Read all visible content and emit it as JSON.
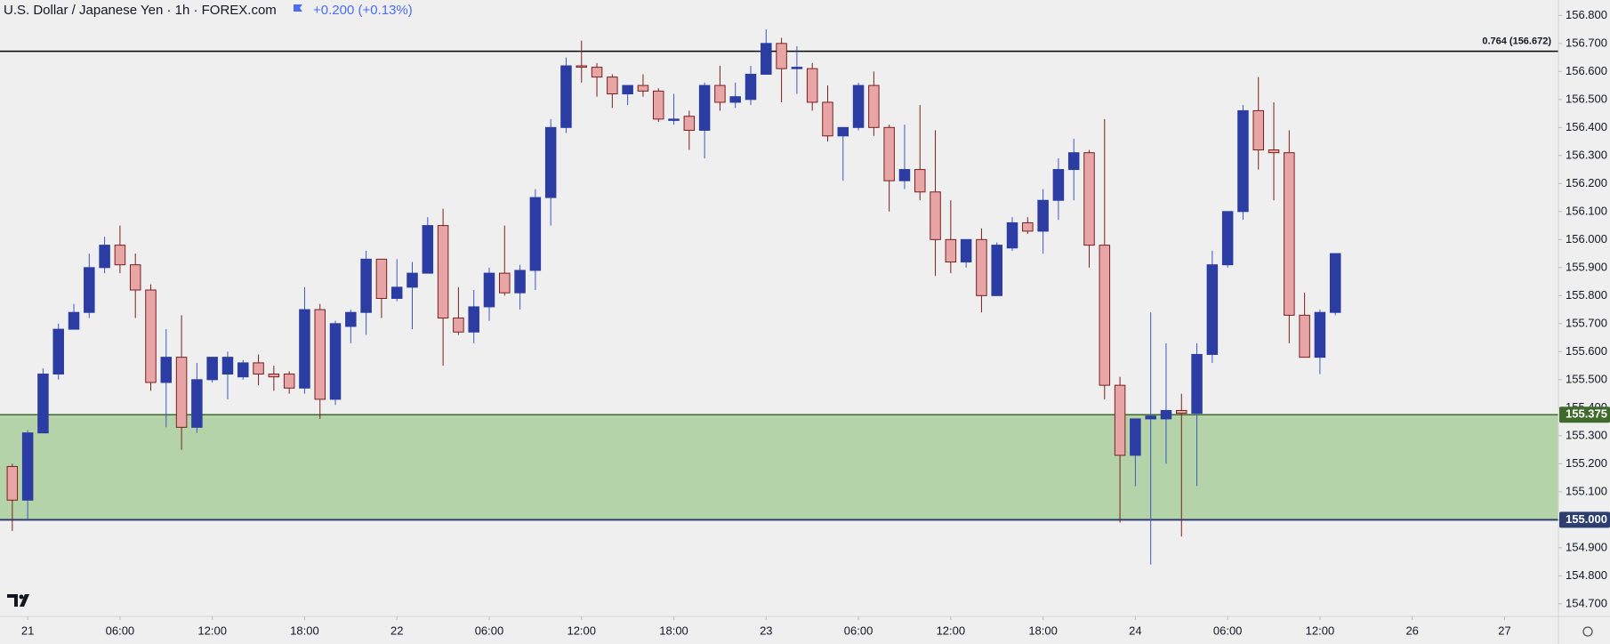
{
  "header": {
    "title": "U.S. Dollar / Japanese Yen · 1h · FOREX.com",
    "change": "+0.200 (+0.13%)"
  },
  "chart_data": {
    "type": "candlestick",
    "up_color": "#2b3ca3",
    "down_color": "#e8a5a5",
    "x": [
      -1,
      0,
      1,
      2,
      3,
      4,
      5,
      6,
      7,
      8,
      9,
      10,
      11,
      12,
      13,
      14,
      15,
      16,
      17,
      18,
      19,
      20,
      21,
      22,
      23,
      24,
      25,
      26,
      27,
      28,
      29,
      30,
      31,
      32,
      33,
      34,
      35,
      36,
      37,
      38,
      39,
      40,
      41,
      42,
      43,
      44,
      45,
      46,
      47,
      48,
      49,
      50,
      51,
      52,
      53,
      54,
      55,
      56,
      57,
      58,
      59,
      60,
      61,
      62,
      63,
      64,
      65,
      66,
      67,
      68,
      69,
      70,
      71,
      72,
      73,
      74,
      75,
      76,
      77,
      78,
      79,
      80,
      81,
      82,
      83,
      84,
      85
    ],
    "open": [
      155.19,
      155.07,
      155.31,
      155.52,
      155.68,
      155.74,
      155.9,
      155.98,
      155.91,
      155.82,
      155.49,
      155.58,
      155.33,
      155.5,
      155.52,
      155.51,
      155.56,
      155.52,
      155.52,
      155.47,
      155.75,
      155.43,
      155.69,
      155.74,
      155.93,
      155.79,
      155.83,
      155.88,
      156.05,
      155.72,
      155.67,
      155.76,
      155.88,
      155.81,
      155.89,
      156.15,
      156.4,
      156.62,
      156.615,
      156.58,
      156.52,
      156.55,
      156.53,
      156.43,
      156.44,
      156.39,
      156.55,
      156.49,
      156.5,
      156.59,
      156.7,
      156.61,
      156.61,
      156.49,
      156.37,
      156.4,
      156.55,
      156.4,
      156.21,
      156.25,
      156.17,
      156.0,
      155.92,
      156.0,
      155.8,
      155.97,
      156.06,
      156.03,
      156.14,
      156.25,
      156.31,
      155.98,
      155.48,
      155.23,
      155.36,
      155.36,
      155.39,
      155.38,
      155.59,
      155.91,
      156.1,
      156.46,
      156.32,
      156.31,
      155.73,
      155.58,
      155.74
    ],
    "high": [
      155.2,
      155.32,
      155.54,
      155.7,
      155.77,
      155.95,
      156.01,
      156.05,
      155.95,
      155.84,
      155.68,
      155.73,
      155.56,
      155.58,
      155.6,
      155.57,
      155.59,
      155.55,
      155.53,
      155.83,
      155.77,
      155.71,
      155.75,
      155.96,
      155.93,
      155.93,
      155.92,
      156.08,
      156.11,
      155.83,
      155.82,
      155.9,
      156.05,
      155.91,
      156.18,
      156.43,
      156.65,
      156.71,
      156.63,
      156.59,
      156.55,
      156.59,
      156.54,
      156.52,
      156.46,
      156.56,
      156.62,
      156.56,
      156.62,
      156.75,
      156.72,
      156.69,
      156.63,
      156.55,
      156.4,
      156.56,
      156.6,
      156.41,
      156.41,
      156.48,
      156.39,
      156.14,
      156.0,
      156.04,
      155.99,
      156.08,
      156.08,
      156.18,
      156.29,
      156.36,
      156.32,
      156.43,
      155.51,
      155.36,
      155.74,
      155.63,
      155.45,
      155.63,
      155.96,
      156.1,
      156.48,
      156.58,
      156.49,
      156.39,
      155.81,
      155.75,
      155.95
    ],
    "low": [
      154.96,
      155.0,
      155.31,
      155.5,
      155.68,
      155.72,
      155.88,
      155.88,
      155.72,
      155.46,
      155.33,
      155.25,
      155.31,
      155.49,
      155.43,
      155.5,
      155.48,
      155.46,
      155.45,
      155.45,
      155.36,
      155.41,
      155.63,
      155.66,
      155.72,
      155.78,
      155.68,
      155.88,
      155.55,
      155.66,
      155.63,
      155.71,
      155.8,
      155.75,
      155.82,
      156.05,
      156.38,
      156.56,
      156.51,
      156.47,
      156.48,
      156.51,
      156.42,
      156.41,
      156.32,
      156.29,
      156.46,
      156.47,
      156.48,
      156.59,
      156.49,
      156.52,
      156.46,
      156.35,
      156.21,
      156.39,
      156.37,
      156.1,
      156.18,
      156.14,
      155.87,
      155.88,
      155.9,
      155.74,
      155.8,
      155.96,
      156.02,
      155.95,
      156.07,
      156.14,
      155.9,
      155.43,
      154.99,
      155.12,
      154.84,
      155.2,
      154.94,
      155.12,
      155.56,
      155.9,
      156.07,
      156.25,
      156.14,
      155.63,
      155.58,
      155.52,
      155.73
    ],
    "close": [
      155.07,
      155.31,
      155.52,
      155.68,
      155.74,
      155.9,
      155.98,
      155.91,
      155.82,
      155.49,
      155.58,
      155.33,
      155.5,
      155.58,
      155.58,
      155.56,
      155.52,
      155.51,
      155.47,
      155.75,
      155.43,
      155.7,
      155.74,
      155.93,
      155.79,
      155.83,
      155.88,
      156.05,
      155.72,
      155.67,
      155.76,
      155.88,
      155.81,
      155.89,
      156.15,
      156.4,
      156.62,
      156.615,
      156.58,
      156.52,
      156.55,
      156.53,
      156.43,
      156.43,
      156.39,
      156.55,
      156.49,
      156.51,
      156.59,
      156.7,
      156.61,
      156.615,
      156.49,
      156.37,
      156.4,
      156.55,
      156.4,
      156.21,
      156.25,
      156.17,
      156.0,
      155.92,
      156.0,
      155.8,
      155.98,
      156.06,
      156.03,
      156.14,
      156.25,
      156.31,
      155.98,
      155.48,
      155.23,
      155.36,
      155.37,
      155.39,
      155.38,
      155.59,
      155.91,
      156.1,
      156.46,
      156.32,
      156.31,
      155.73,
      155.58,
      155.74,
      155.95
    ],
    "xlim": [
      -1.8,
      99.5
    ],
    "xticks": [
      {
        "value": 0,
        "label": "21"
      },
      {
        "value": 6,
        "label": "06:00"
      },
      {
        "value": 12,
        "label": "12:00"
      },
      {
        "value": 18,
        "label": "18:00"
      },
      {
        "value": 24,
        "label": "22"
      },
      {
        "value": 30,
        "label": "06:00"
      },
      {
        "value": 36,
        "label": "12:00"
      },
      {
        "value": 42,
        "label": "18:00"
      },
      {
        "value": 48,
        "label": "23"
      },
      {
        "value": 54,
        "label": "06:00"
      },
      {
        "value": 60,
        "label": "12:00"
      },
      {
        "value": 66,
        "label": "18:00"
      },
      {
        "value": 72,
        "label": "24"
      },
      {
        "value": 78,
        "label": "06:00"
      },
      {
        "value": 84,
        "label": "12:00"
      },
      {
        "value": 90,
        "label": "26"
      },
      {
        "value": 96,
        "label": "27"
      }
    ],
    "ylim": [
      154.655,
      156.855
    ],
    "yticks": [
      {
        "value": 154.7,
        "label": "154.700"
      },
      {
        "value": 154.8,
        "label": "154.800"
      },
      {
        "value": 154.9,
        "label": "154.900"
      },
      {
        "value": 155.0,
        "label": "155.000"
      },
      {
        "value": 155.1,
        "label": "155.100"
      },
      {
        "value": 155.2,
        "label": "155.200"
      },
      {
        "value": 155.3,
        "label": "155.300"
      },
      {
        "value": 155.4,
        "label": "155.400"
      },
      {
        "value": 155.5,
        "label": "155.500"
      },
      {
        "value": 155.6,
        "label": "155.600"
      },
      {
        "value": 155.7,
        "label": "155.700"
      },
      {
        "value": 155.8,
        "label": "155.800"
      },
      {
        "value": 155.9,
        "label": "155.900"
      },
      {
        "value": 156.0,
        "label": "156.000"
      },
      {
        "value": 156.1,
        "label": "156.100"
      },
      {
        "value": 156.2,
        "label": "156.200"
      },
      {
        "value": 156.3,
        "label": "156.300"
      },
      {
        "value": 156.4,
        "label": "156.400"
      },
      {
        "value": 156.5,
        "label": "156.500"
      },
      {
        "value": 156.6,
        "label": "156.600"
      },
      {
        "value": 156.7,
        "label": "156.700"
      },
      {
        "value": 156.8,
        "label": "156.800"
      }
    ],
    "level": {
      "value": 156.672,
      "label": "0.764 (156.672)",
      "color": "#000000"
    },
    "zone": {
      "color": "#b5d3a8",
      "top": {
        "value": 155.375,
        "label": "155.375",
        "color": "#3e6a2c"
      },
      "bottom": {
        "value": 155.0,
        "label": "155.000",
        "color": "#2c3f70"
      }
    }
  }
}
